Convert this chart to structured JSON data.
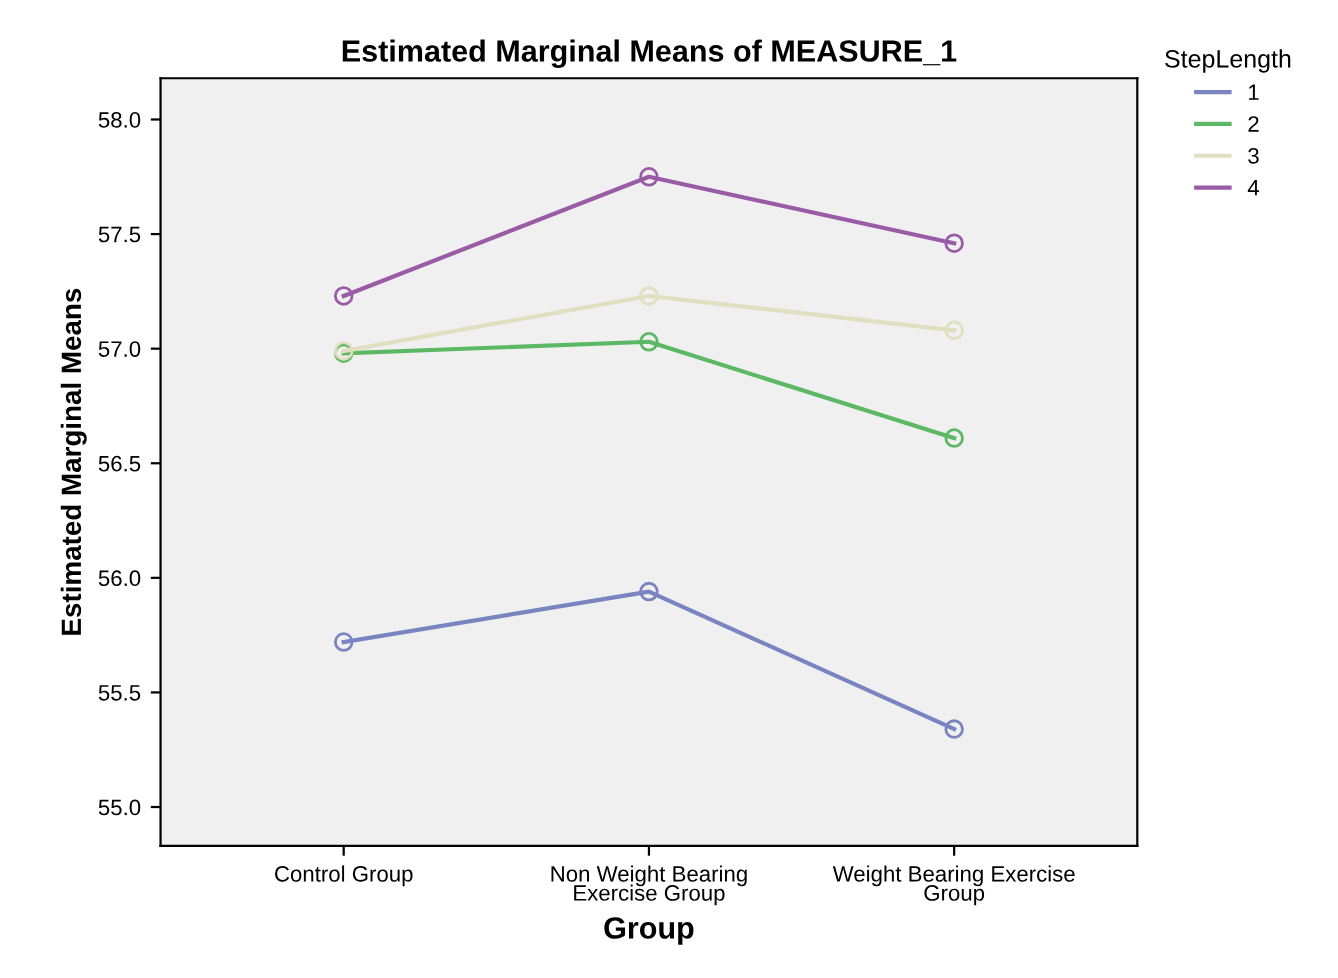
{
  "chart_data": {
    "type": "line",
    "title": "Estimated Marginal Means of MEASURE_1",
    "xlabel": "Group",
    "ylabel": "Estimated Marginal Means",
    "legend_title": "StepLength",
    "categories": [
      "Control Group",
      "Non Weight Bearing\nExercise Group",
      "Weight Bearing Exercise\nGroup"
    ],
    "series": [
      {
        "name": "1",
        "color": "#7a84c0",
        "values": [
          55.72,
          55.94,
          55.34
        ]
      },
      {
        "name": "2",
        "color": "#5cb865",
        "values": [
          56.98,
          57.03,
          56.61
        ]
      },
      {
        "name": "3",
        "color": "#e0dfbf",
        "values": [
          56.99,
          57.23,
          57.08
        ]
      },
      {
        "name": "4",
        "color": "#9a5ba6",
        "values": [
          57.23,
          57.75,
          57.46
        ]
      }
    ],
    "ylim": [
      54.83,
      58.18
    ],
    "yticks": [
      {
        "value": 55,
        "label": "55.0"
      },
      {
        "value": 55.5,
        "label": "55.5"
      },
      {
        "value": 56,
        "label": "56.0"
      },
      {
        "value": 56.5,
        "label": "56.5"
      },
      {
        "value": 57,
        "label": "57.0"
      },
      {
        "value": 57.5,
        "label": "57.5"
      },
      {
        "value": 58,
        "label": "58.0"
      }
    ],
    "marker": "circle",
    "line_style": "solid",
    "grid": false,
    "legend": "top right"
  }
}
